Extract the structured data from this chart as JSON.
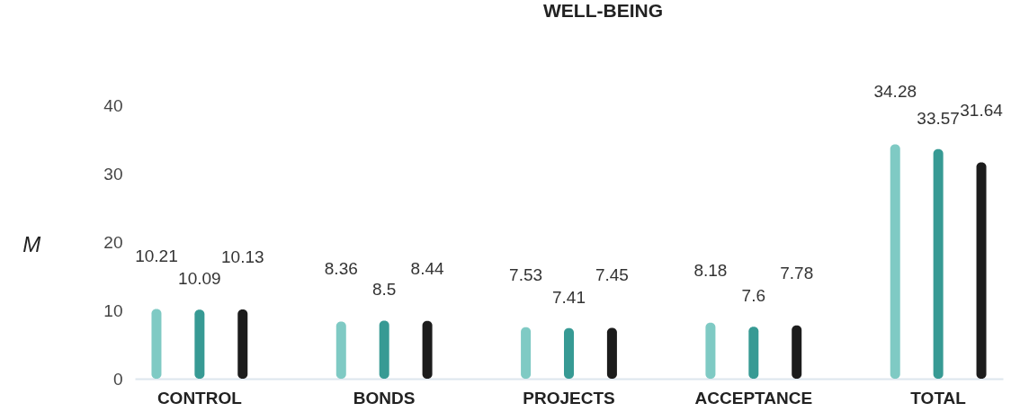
{
  "chart_data": {
    "type": "bar",
    "title": "WELL-BEING",
    "ylabel": "M",
    "categories": [
      "CONTROL",
      "BONDS",
      "PROJECTS",
      "ACCEPTANCE",
      "TOTAL"
    ],
    "series": [
      {
        "color": "#7fcac4",
        "values": [
          10.21,
          8.36,
          7.53,
          8.18,
          34.28
        ]
      },
      {
        "color": "#379a94",
        "values": [
          10.09,
          8.5,
          7.41,
          7.6,
          33.57
        ]
      },
      {
        "color": "#1c1c1c",
        "values": [
          10.13,
          8.44,
          7.45,
          7.78,
          31.64
        ]
      }
    ],
    "ylim": [
      0,
      40
    ],
    "yticks": [
      0,
      10,
      20,
      30,
      40
    ],
    "grid": false,
    "data_labels": true
  }
}
